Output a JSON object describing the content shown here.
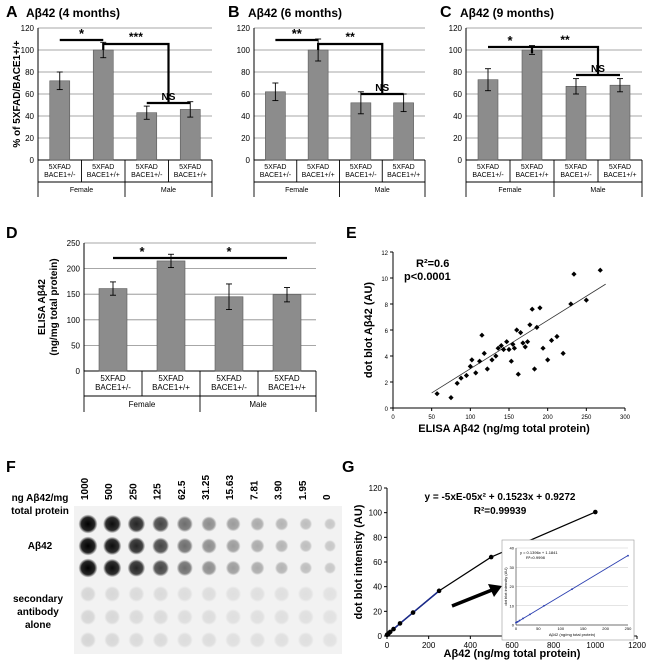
{
  "figure": {
    "panels": [
      {
        "letter": "A",
        "title": "Aβ42 (4 months)"
      },
      {
        "letter": "B",
        "title": "Aβ42 (6 months)"
      },
      {
        "letter": "C",
        "title": "Aβ42 (9 months)"
      },
      {
        "letter": "D",
        "title": ""
      },
      {
        "letter": "E",
        "title": ""
      },
      {
        "letter": "F",
        "title": ""
      },
      {
        "letter": "G",
        "title": ""
      }
    ]
  },
  "chart_data": [
    {
      "panel": "A",
      "type": "bar",
      "title": "Aβ42 (4 months)",
      "ylabel": "% of 5XFAD/BACE1+/+",
      "ylim": [
        0,
        120
      ],
      "yticks": [
        0,
        20,
        40,
        60,
        80,
        100,
        120
      ],
      "grid": true,
      "categories": [
        "5XFAD BACE1+/-",
        "5XFAD BACE1+/+",
        "5XFAD BACE1+/-",
        "5XFAD BACE1+/+"
      ],
      "groups": [
        "Female",
        "Male"
      ],
      "values": [
        72,
        100,
        43,
        46
      ],
      "errors": [
        8,
        7,
        6,
        7
      ],
      "significance": [
        {
          "from": 0,
          "to": 1,
          "label": "*"
        },
        {
          "from": 1,
          "to": "2-3",
          "label": "***"
        },
        {
          "from": 2,
          "to": 3,
          "label": "NS"
        }
      ]
    },
    {
      "panel": "B",
      "type": "bar",
      "title": "Aβ42 (6 months)",
      "ylabel": "",
      "ylim": [
        0,
        120
      ],
      "yticks": [
        0,
        20,
        40,
        60,
        80,
        100,
        120
      ],
      "grid": true,
      "categories": [
        "5XFAD BACE1+/-",
        "5XFAD BACE1+/+",
        "5XFAD BACE1+/-",
        "5XFAD BACE1+/+"
      ],
      "groups": [
        "Female",
        "Male"
      ],
      "values": [
        62,
        100,
        52,
        52
      ],
      "errors": [
        8,
        10,
        10,
        8
      ],
      "significance": [
        {
          "from": 0,
          "to": 1,
          "label": "**"
        },
        {
          "from": 1,
          "to": "2-3",
          "label": "**"
        },
        {
          "from": 2,
          "to": 3,
          "label": "NS"
        }
      ]
    },
    {
      "panel": "C",
      "type": "bar",
      "title": "Aβ42 (9 months)",
      "ylabel": "",
      "ylim": [
        0,
        120
      ],
      "yticks": [
        0,
        20,
        40,
        60,
        80,
        100,
        120
      ],
      "grid": true,
      "categories": [
        "5XFAD BACE1+/-",
        "5XFAD BACE1+/+",
        "5XFAD BACE1+/-",
        "5XFAD BACE1+/+"
      ],
      "groups": [
        "Female",
        "Male"
      ],
      "values": [
        73,
        100,
        67,
        68
      ],
      "errors": [
        10,
        4,
        7,
        6
      ],
      "significance": [
        {
          "from": 0,
          "to": 1,
          "label": "*"
        },
        {
          "from": 1,
          "to": "2-3",
          "label": "**"
        },
        {
          "from": 2,
          "to": 3,
          "label": "NS"
        }
      ]
    },
    {
      "panel": "D",
      "type": "bar",
      "title": "",
      "ylabel": "ELISA Aβ42 (ng/mg total protein)",
      "ylim": [
        0,
        250
      ],
      "yticks": [
        0,
        50,
        100,
        150,
        200,
        250
      ],
      "grid": true,
      "categories": [
        "5XFAD BACE1+/-",
        "5XFAD BACE1+/+",
        "5XFAD BACE1+/-",
        "5XFAD BACE1+/+"
      ],
      "groups": [
        "Female",
        "Male"
      ],
      "values": [
        161,
        215,
        145,
        149
      ],
      "errors": [
        13,
        13,
        25,
        14
      ],
      "significance": [
        {
          "from": 0,
          "to": 1,
          "label": "*"
        },
        {
          "from": 1,
          "to": 3,
          "label": "*"
        }
      ]
    },
    {
      "panel": "E",
      "type": "scatter",
      "title": "",
      "xlabel": "ELISA Aβ42 (ng/mg total protein)",
      "ylabel": "dot blot Aβ42 (AU)",
      "xlim": [
        0,
        300
      ],
      "ylim": [
        0,
        12
      ],
      "xticks": [
        0,
        50,
        100,
        150,
        200,
        250,
        300
      ],
      "yticks": [
        0,
        2,
        4,
        6,
        8,
        10,
        12
      ],
      "annotations": [
        "R²=0.6",
        "p<0.0001"
      ],
      "trendline": {
        "slope": 0.0372,
        "intercept": -0.7
      },
      "points": [
        [
          57,
          1.1
        ],
        [
          75,
          0.8
        ],
        [
          83,
          1.9
        ],
        [
          88,
          2.3
        ],
        [
          95,
          2.5
        ],
        [
          100,
          3.2
        ],
        [
          102,
          3.7
        ],
        [
          107,
          2.7
        ],
        [
          112,
          3.6
        ],
        [
          115,
          5.6
        ],
        [
          118,
          4.2
        ],
        [
          122,
          3.0
        ],
        [
          128,
          3.7
        ],
        [
          133,
          4.0
        ],
        [
          136,
          4.6
        ],
        [
          140,
          4.8
        ],
        [
          143,
          4.5
        ],
        [
          147,
          5.1
        ],
        [
          150,
          4.5
        ],
        [
          153,
          3.6
        ],
        [
          155,
          4.9
        ],
        [
          157,
          4.6
        ],
        [
          160,
          6.0
        ],
        [
          162,
          2.6
        ],
        [
          165,
          5.8
        ],
        [
          168,
          5.0
        ],
        [
          171,
          4.7
        ],
        [
          174,
          5.1
        ],
        [
          177,
          6.4
        ],
        [
          180,
          7.6
        ],
        [
          183,
          3.0
        ],
        [
          186,
          6.2
        ],
        [
          190,
          7.7
        ],
        [
          194,
          4.6
        ],
        [
          200,
          3.7
        ],
        [
          205,
          5.2
        ],
        [
          212,
          5.5
        ],
        [
          220,
          4.2
        ],
        [
          230,
          8.0
        ],
        [
          234,
          10.3
        ],
        [
          250,
          8.3
        ],
        [
          268,
          10.6
        ]
      ]
    },
    {
      "panel": "F",
      "type": "table",
      "row_header": "ng Aβ42/mg total protein",
      "columns": [
        "1000",
        "500",
        "250",
        "125",
        "62.5",
        "31.25",
        "15.63",
        "7.81",
        "3.90",
        "1.95",
        "0"
      ],
      "row_labels": [
        "Aβ42",
        "secondary antibody alone"
      ],
      "aβ42_intensity": [
        1.0,
        0.95,
        0.85,
        0.72,
        0.55,
        0.42,
        0.36,
        0.3,
        0.26,
        0.22,
        0.18
      ],
      "secondary_intensity": [
        0.12,
        0.11,
        0.1,
        0.1,
        0.09,
        0.09,
        0.08,
        0.08,
        0.08,
        0.08,
        0.07
      ]
    },
    {
      "panel": "G",
      "type": "line",
      "xlabel": "Aβ42 (ng/mg total protein)",
      "ylabel": "dot blot intensity (AU)",
      "xlim": [
        0,
        1200
      ],
      "ylim": [
        0,
        120
      ],
      "xticks": [
        0,
        200,
        400,
        600,
        800,
        1000,
        1200
      ],
      "yticks": [
        0,
        20,
        40,
        60,
        80,
        100,
        120
      ],
      "equation": "y = -5xE-05x² + 0.1523x + 0.9272",
      "r_squared": "R²=0.99939",
      "points": [
        [
          0,
          0.9
        ],
        [
          1.95,
          1.2
        ],
        [
          3.9,
          1.5
        ],
        [
          7.81,
          2.1
        ],
        [
          15.63,
          3.3
        ],
        [
          31.25,
          5.6
        ],
        [
          62.5,
          10.2
        ],
        [
          125,
          19.0
        ],
        [
          250,
          36.6
        ],
        [
          500,
          64.0
        ],
        [
          1000,
          100.5
        ]
      ],
      "inset": {
        "xlabel": "Aβ42 (ng/mg total protein)",
        "ylabel": "dot blot intensity (AU)",
        "xlim": [
          0,
          250
        ],
        "ylim": [
          0,
          40
        ],
        "xticks": [
          0,
          50,
          100,
          150,
          200,
          250
        ],
        "yticks": [
          0,
          10,
          20,
          30,
          40
        ],
        "equation": "y = 0.1396x + 1.1841",
        "r_squared": "R²=0.9998",
        "points": [
          [
            0,
            1.2
          ],
          [
            1.95,
            1.5
          ],
          [
            3.9,
            1.7
          ],
          [
            7.81,
            2.3
          ],
          [
            15.63,
            3.4
          ],
          [
            31.25,
            5.5
          ],
          [
            62.5,
            10.0
          ],
          [
            125,
            18.6
          ],
          [
            250,
            36.0
          ]
        ]
      }
    }
  ]
}
